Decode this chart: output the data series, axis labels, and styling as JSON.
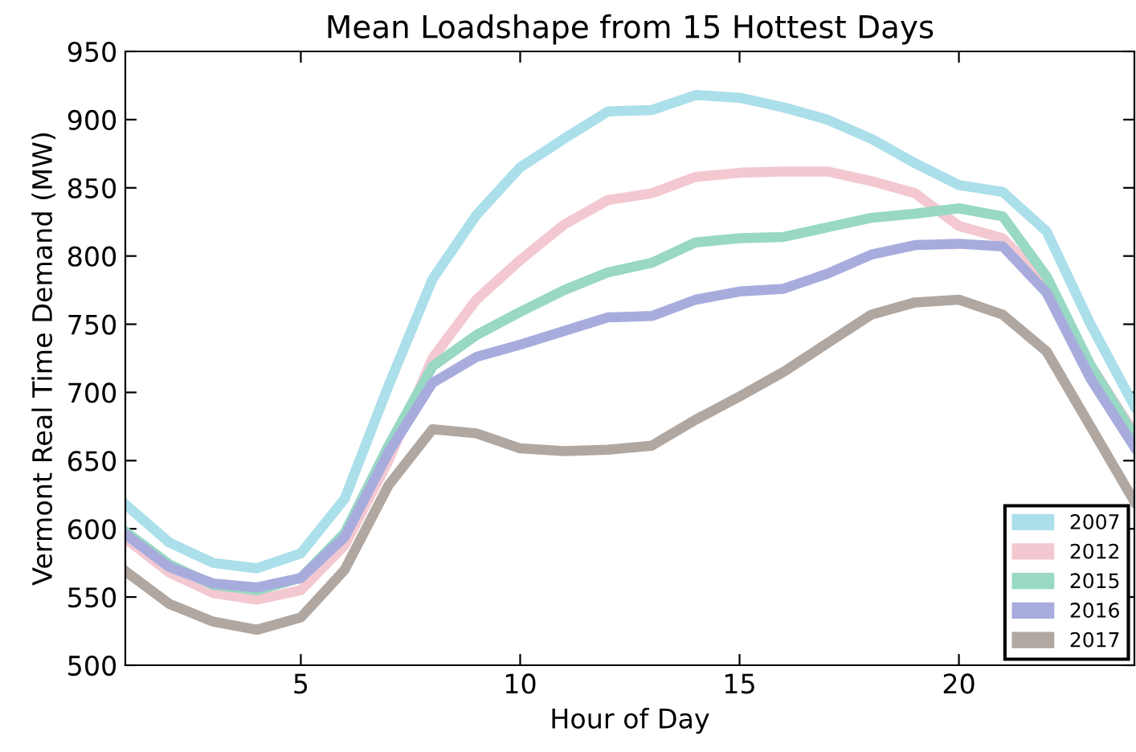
{
  "chart_data": {
    "type": "line",
    "title": "Mean Loadshape from 15 Hottest Days",
    "xlabel": "Hour of Day",
    "ylabel": "Vermont Real Time Demand (MW)",
    "x": [
      1,
      2,
      3,
      4,
      5,
      6,
      7,
      8,
      9,
      10,
      11,
      12,
      13,
      14,
      15,
      16,
      17,
      18,
      19,
      20,
      21,
      22,
      23,
      24
    ],
    "series": [
      {
        "name": "2007",
        "color": "#abdfea",
        "values": [
          618,
          590,
          575,
          571,
          582,
          622,
          705,
          783,
          830,
          865,
          886,
          906,
          907,
          918,
          916,
          909,
          900,
          886,
          868,
          852,
          847,
          818,
          750,
          690
        ]
      },
      {
        "name": "2012",
        "color": "#f3c8d1",
        "values": [
          593,
          568,
          553,
          548,
          555,
          588,
          650,
          725,
          768,
          797,
          823,
          841,
          846,
          858,
          861,
          862,
          862,
          855,
          846,
          822,
          813,
          780,
          720,
          670
        ]
      },
      {
        "name": "2015",
        "color": "#98d8c4",
        "values": [
          598,
          574,
          559,
          555,
          564,
          597,
          661,
          719,
          742,
          759,
          775,
          788,
          795,
          810,
          813,
          814,
          821,
          828,
          831,
          835,
          829,
          785,
          720,
          668
        ]
      },
      {
        "name": "2016",
        "color": "#a8acdd",
        "values": [
          596,
          572,
          560,
          557,
          564,
          594,
          656,
          707,
          726,
          735,
          745,
          755,
          756,
          768,
          774,
          776,
          787,
          801,
          808,
          809,
          807,
          773,
          710,
          660
        ]
      },
      {
        "name": "2017",
        "color": "#b0a7a1",
        "values": [
          569,
          545,
          532,
          526,
          535,
          570,
          632,
          673,
          670,
          659,
          657,
          658,
          661,
          680,
          697,
          715,
          736,
          757,
          766,
          768,
          757,
          730,
          675,
          620
        ]
      }
    ],
    "xlim": [
      1,
      24
    ],
    "ylim": [
      500,
      950
    ],
    "xticks": [
      5,
      10,
      15,
      20
    ],
    "yticks": [
      500,
      550,
      600,
      650,
      700,
      750,
      800,
      850,
      900,
      950
    ],
    "legend": "bottom right",
    "grid": false,
    "marker": "none",
    "line_style": "solid"
  }
}
